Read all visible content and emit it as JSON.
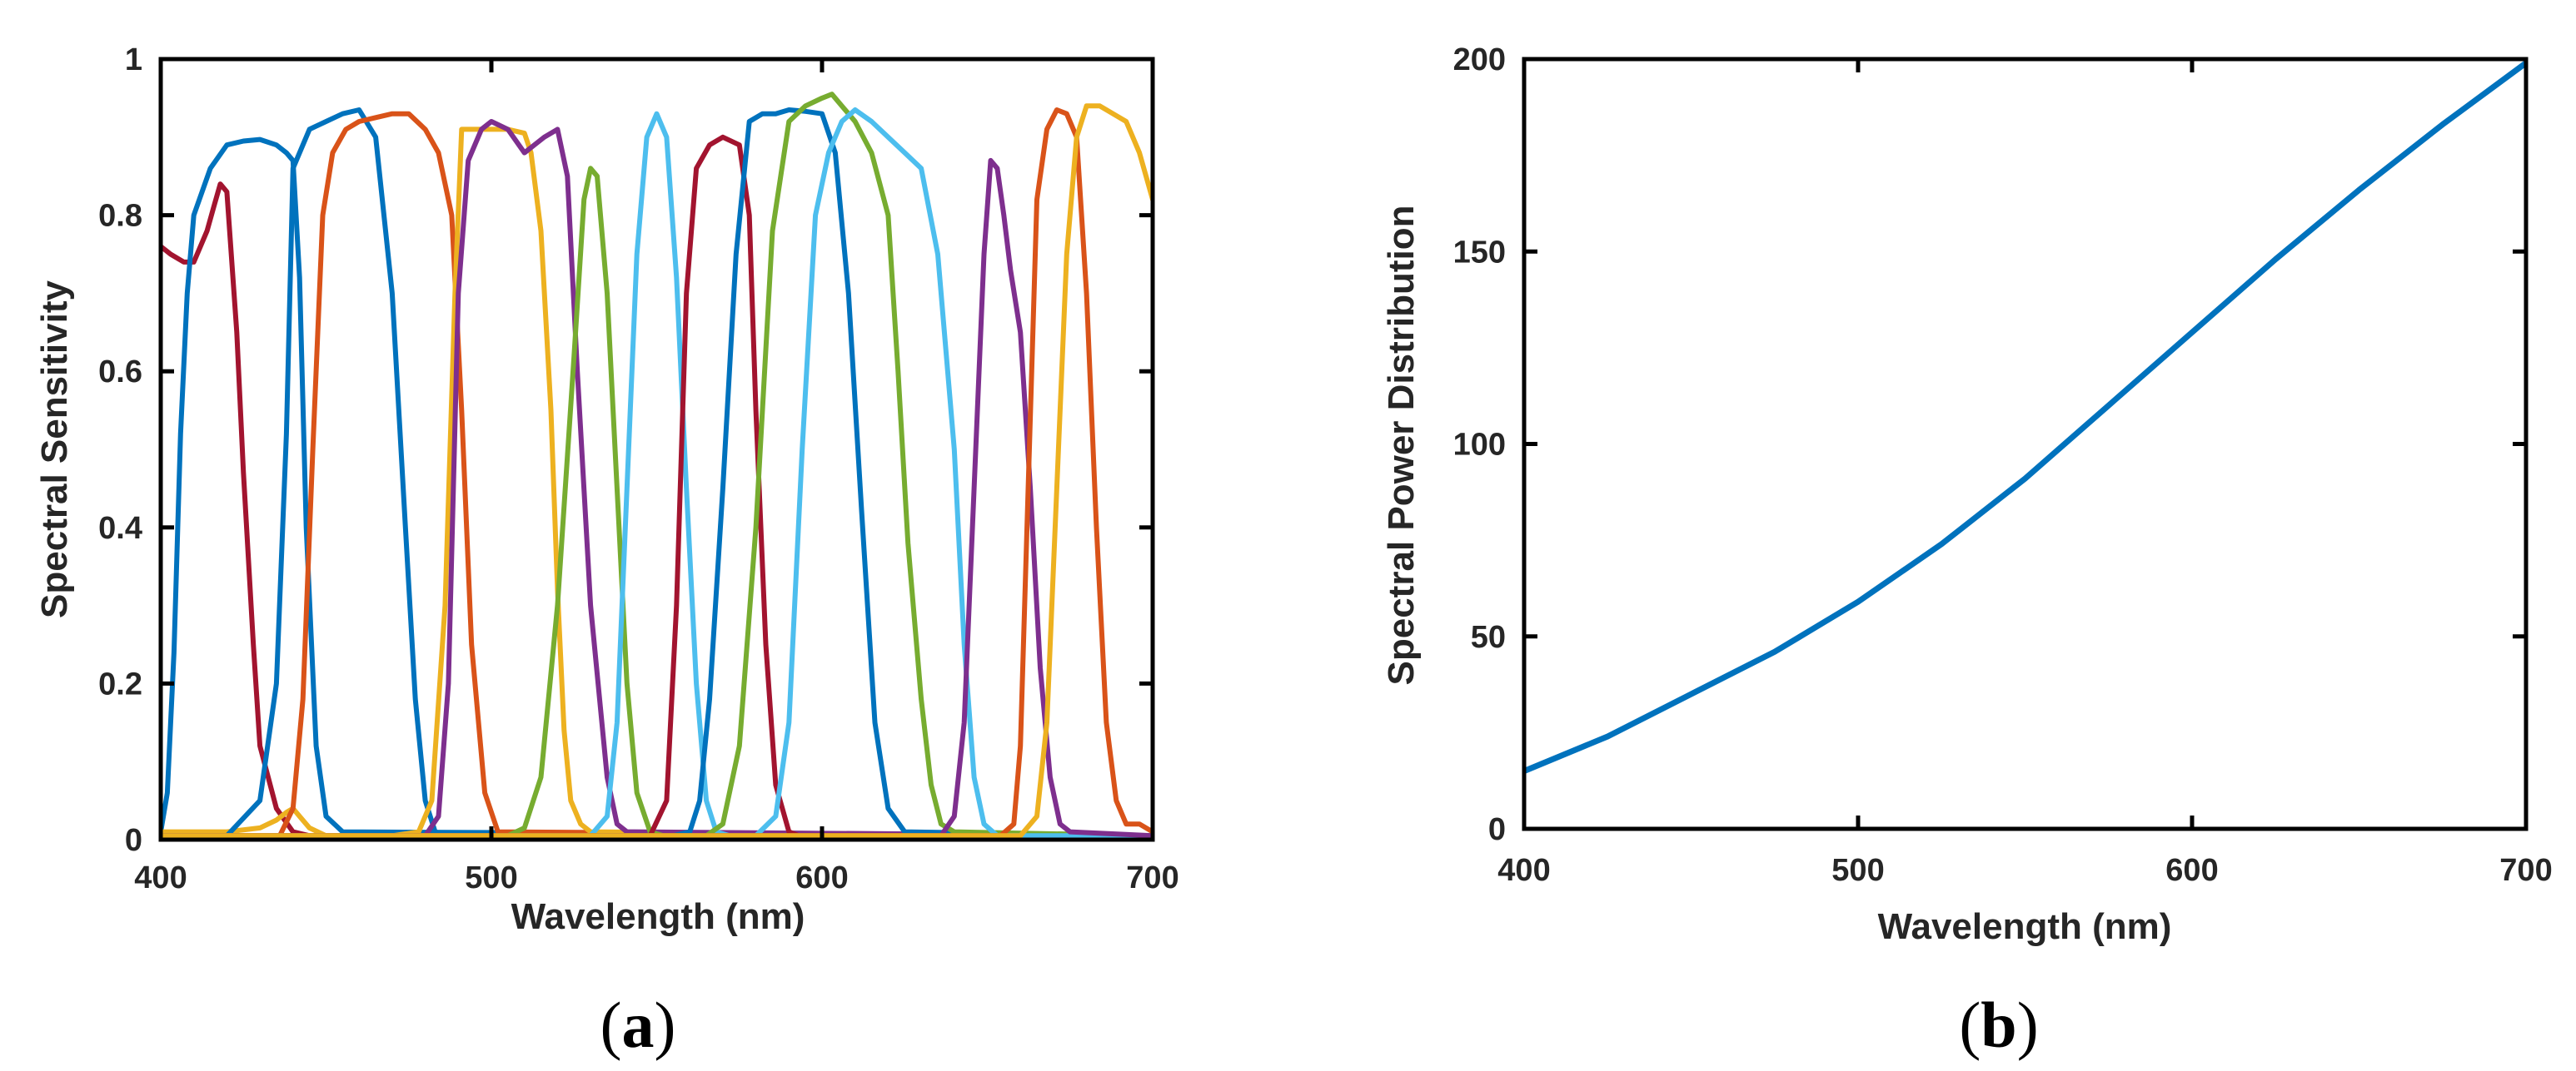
{
  "chart_data": [
    {
      "type": "line",
      "panel": "a",
      "xlabel": "Wavelength (nm)",
      "ylabel": "Spectral Sensitivity",
      "xlim": [
        400,
        700
      ],
      "ylim": [
        0,
        1
      ],
      "xticks": [
        400,
        500,
        600,
        700
      ],
      "yticks": [
        0,
        0.2,
        0.4,
        0.6,
        0.8,
        1
      ],
      "ytick_labels": [
        "0",
        "0.2",
        "0.4",
        "0.6",
        "0.8",
        "1"
      ],
      "series": [
        {
          "name": "band-1",
          "color": "#A2142F",
          "x": [
            400,
            403,
            407,
            410,
            414,
            416,
            418,
            420,
            423,
            425,
            428,
            430,
            435,
            440,
            445,
            700
          ],
          "y": [
            0.76,
            0.75,
            0.74,
            0.74,
            0.78,
            0.81,
            0.84,
            0.83,
            0.65,
            0.47,
            0.25,
            0.12,
            0.04,
            0.01,
            0.005,
            0.005
          ]
        },
        {
          "name": "band-2",
          "color": "#0072BD",
          "x": [
            400,
            402,
            404,
            406,
            408,
            410,
            415,
            420,
            425,
            430,
            435,
            438,
            440,
            442,
            444,
            447,
            450,
            455,
            700
          ],
          "y": [
            0.01,
            0.06,
            0.24,
            0.52,
            0.7,
            0.8,
            0.86,
            0.89,
            0.895,
            0.897,
            0.89,
            0.88,
            0.87,
            0.72,
            0.4,
            0.12,
            0.03,
            0.01,
            0.005
          ]
        },
        {
          "name": "band-3",
          "color": "#EDB120",
          "x": [
            400,
            420,
            430,
            435,
            438,
            440,
            442,
            445,
            450,
            700
          ],
          "y": [
            0.01,
            0.01,
            0.015,
            0.025,
            0.035,
            0.04,
            0.03,
            0.015,
            0.005,
            0.005
          ]
        },
        {
          "name": "band-4",
          "color": "#0072BD",
          "x": [
            400,
            420,
            430,
            435,
            438,
            440,
            445,
            450,
            455,
            460,
            465,
            470,
            474,
            477,
            480,
            483,
            487,
            700
          ],
          "y": [
            0.005,
            0.005,
            0.05,
            0.2,
            0.52,
            0.86,
            0.91,
            0.92,
            0.93,
            0.935,
            0.9,
            0.7,
            0.4,
            0.18,
            0.05,
            0.01,
            0.005,
            0.005
          ]
        },
        {
          "name": "band-5",
          "color": "#D95319",
          "x": [
            400,
            436,
            440,
            443,
            446,
            449,
            452,
            456,
            460,
            465,
            470,
            475,
            480,
            484,
            488,
            491,
            494,
            498,
            502,
            700
          ],
          "y": [
            0.005,
            0.005,
            0.04,
            0.18,
            0.5,
            0.8,
            0.88,
            0.91,
            0.92,
            0.925,
            0.93,
            0.93,
            0.91,
            0.88,
            0.8,
            0.55,
            0.25,
            0.06,
            0.01,
            0.005
          ]
        },
        {
          "name": "band-6",
          "color": "#EDB120",
          "x": [
            400,
            470,
            478,
            482,
            486,
            489,
            491,
            495,
            500,
            505,
            510,
            512,
            515,
            518,
            520,
            522,
            524,
            527,
            530,
            700
          ],
          "y": [
            0.005,
            0.005,
            0.01,
            0.05,
            0.3,
            0.7,
            0.91,
            0.91,
            0.91,
            0.91,
            0.905,
            0.88,
            0.78,
            0.55,
            0.32,
            0.14,
            0.05,
            0.02,
            0.01,
            0.005
          ]
        },
        {
          "name": "band-7",
          "color": "#7E2F8E",
          "x": [
            400,
            480,
            484,
            487,
            490,
            493,
            497,
            500,
            505,
            510,
            513,
            516,
            520,
            523,
            526,
            530,
            535,
            538,
            541,
            700
          ],
          "y": [
            0.005,
            0.005,
            0.03,
            0.2,
            0.7,
            0.87,
            0.91,
            0.92,
            0.91,
            0.88,
            0.89,
            0.9,
            0.91,
            0.85,
            0.6,
            0.3,
            0.08,
            0.02,
            0.01,
            0.005
          ]
        },
        {
          "name": "band-8",
          "color": "#77AC30",
          "x": [
            400,
            505,
            510,
            515,
            520,
            525,
            528,
            530,
            532,
            535,
            538,
            541,
            544,
            548,
            552,
            700
          ],
          "y": [
            0.005,
            0.005,
            0.015,
            0.08,
            0.3,
            0.62,
            0.82,
            0.86,
            0.85,
            0.7,
            0.45,
            0.2,
            0.06,
            0.01,
            0.005,
            0.005
          ]
        },
        {
          "name": "band-9",
          "color": "#4DBEEE",
          "x": [
            400,
            530,
            535,
            538,
            541,
            544,
            547,
            550,
            553,
            556,
            559,
            562,
            565,
            568,
            572,
            700
          ],
          "y": [
            0.005,
            0.005,
            0.03,
            0.15,
            0.45,
            0.75,
            0.9,
            0.93,
            0.9,
            0.72,
            0.45,
            0.2,
            0.05,
            0.01,
            0.005,
            0.005
          ]
        },
        {
          "name": "band-10",
          "color": "#A2142F",
          "x": [
            400,
            548,
            553,
            556,
            559,
            562,
            566,
            570,
            575,
            578,
            580,
            583,
            586,
            590,
            593,
            700
          ],
          "y": [
            0.005,
            0.005,
            0.05,
            0.3,
            0.7,
            0.86,
            0.89,
            0.9,
            0.89,
            0.8,
            0.55,
            0.25,
            0.07,
            0.01,
            0.005,
            0.005
          ]
        },
        {
          "name": "band-11",
          "color": "#0072BD",
          "x": [
            400,
            555,
            560,
            563,
            566,
            570,
            574,
            578,
            582,
            586,
            590,
            595,
            600,
            604,
            608,
            612,
            616,
            620,
            625,
            700
          ],
          "y": [
            0.005,
            0.005,
            0.01,
            0.05,
            0.18,
            0.45,
            0.75,
            0.92,
            0.93,
            0.93,
            0.935,
            0.933,
            0.93,
            0.88,
            0.7,
            0.42,
            0.15,
            0.04,
            0.01,
            0.005
          ]
        },
        {
          "name": "band-12",
          "color": "#77AC30",
          "x": [
            400,
            565,
            570,
            575,
            580,
            585,
            590,
            595,
            600,
            603,
            606,
            610,
            615,
            620,
            623,
            626,
            630,
            633,
            636,
            640,
            700
          ],
          "y": [
            0.005,
            0.005,
            0.02,
            0.12,
            0.4,
            0.78,
            0.92,
            0.94,
            0.95,
            0.955,
            0.94,
            0.92,
            0.88,
            0.8,
            0.6,
            0.38,
            0.18,
            0.07,
            0.02,
            0.01,
            0.005
          ]
        },
        {
          "name": "band-13",
          "color": "#4DBEEE",
          "x": [
            400,
            580,
            586,
            590,
            594,
            598,
            602,
            606,
            610,
            615,
            620,
            625,
            630,
            635,
            640,
            643,
            646,
            649,
            653,
            700
          ],
          "y": [
            0.005,
            0.005,
            0.03,
            0.15,
            0.5,
            0.8,
            0.88,
            0.92,
            0.935,
            0.92,
            0.9,
            0.88,
            0.86,
            0.75,
            0.5,
            0.25,
            0.08,
            0.02,
            0.005,
            0.005
          ]
        },
        {
          "name": "band-14",
          "color": "#7E2F8E",
          "x": [
            400,
            636,
            640,
            643,
            646,
            649,
            651,
            653,
            655,
            657,
            660,
            663,
            666,
            669,
            672,
            675,
            700
          ],
          "y": [
            0.005,
            0.005,
            0.03,
            0.15,
            0.45,
            0.75,
            0.87,
            0.86,
            0.8,
            0.73,
            0.65,
            0.45,
            0.22,
            0.08,
            0.02,
            0.01,
            0.005
          ]
        },
        {
          "name": "band-15",
          "color": "#D95319",
          "x": [
            400,
            654,
            658,
            660,
            662,
            665,
            668,
            671,
            674,
            677,
            680,
            683,
            686,
            689,
            692,
            696,
            700
          ],
          "y": [
            0.005,
            0.005,
            0.02,
            0.12,
            0.4,
            0.82,
            0.91,
            0.935,
            0.93,
            0.9,
            0.7,
            0.4,
            0.15,
            0.05,
            0.02,
            0.02,
            0.01
          ]
        },
        {
          "name": "band-16",
          "color": "#EDB120",
          "x": [
            400,
            660,
            665,
            668,
            671,
            674,
            677,
            680,
            684,
            688,
            692,
            696,
            700
          ],
          "y": [
            0.005,
            0.005,
            0.03,
            0.15,
            0.45,
            0.75,
            0.9,
            0.94,
            0.94,
            0.93,
            0.92,
            0.88,
            0.82
          ]
        }
      ]
    },
    {
      "type": "line",
      "panel": "b",
      "xlabel": "Wavelength (nm)",
      "ylabel": "Spectral Power Distribution",
      "xlim": [
        400,
        700
      ],
      "ylim": [
        0,
        200
      ],
      "xticks": [
        400,
        500,
        600,
        700
      ],
      "yticks": [
        0,
        50,
        100,
        150,
        200
      ],
      "series": [
        {
          "name": "illuminant",
          "color": "#0072BD",
          "x": [
            400,
            425,
            450,
            475,
            500,
            525,
            550,
            575,
            600,
            625,
            650,
            675,
            700
          ],
          "y": [
            15,
            24,
            35,
            46,
            59,
            74,
            91,
            110,
            129,
            148,
            166,
            183,
            199
          ]
        }
      ]
    }
  ],
  "panel_labels": {
    "a": {
      "open": "(",
      "letter": "a",
      "close": ")"
    },
    "b": {
      "open": "(",
      "letter": "b",
      "close": ")"
    }
  }
}
